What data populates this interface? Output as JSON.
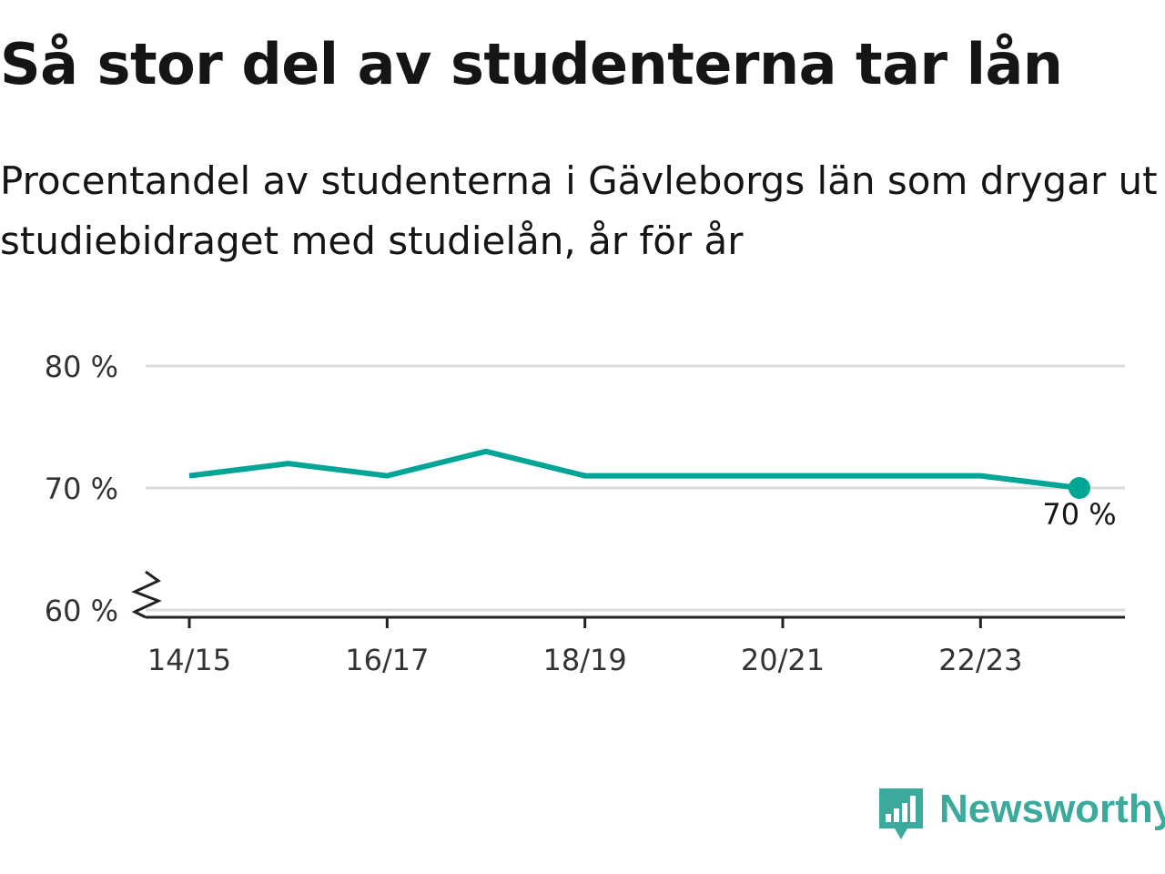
{
  "header": {
    "title": "Så stor del av studenterna tar lån",
    "subtitle": "Procentandel av studenterna i Gävleborgs län som drygar ut studiebidraget med studielån, år för år"
  },
  "chart_data": {
    "type": "line",
    "x": [
      "14/15",
      "15/16",
      "16/17",
      "17/18",
      "18/19",
      "19/20",
      "20/21",
      "21/22",
      "22/23",
      "23/24"
    ],
    "series": [
      {
        "values": [
          71,
          72,
          71,
          73,
          71,
          71,
          71,
          71,
          71,
          70
        ]
      }
    ],
    "x_tick_labels": [
      "14/15",
      "16/17",
      "18/19",
      "20/21",
      "22/23"
    ],
    "y_ticks": [
      {
        "value": 60,
        "label": "60 %"
      },
      {
        "value": 70,
        "label": "70 %"
      },
      {
        "value": 80,
        "label": "80 %"
      }
    ],
    "ylim": [
      60,
      80
    ],
    "y_axis_break": true,
    "grid": true,
    "end_label": "70 %",
    "xlabel": "",
    "ylabel": ""
  },
  "colors": {
    "line": "#00a596",
    "grid": "#dddddd",
    "axis": "#222222",
    "brand": "#3ba99c"
  },
  "brand": {
    "name": "Newsworthy",
    "icon": "newsworthy-logo-icon"
  }
}
